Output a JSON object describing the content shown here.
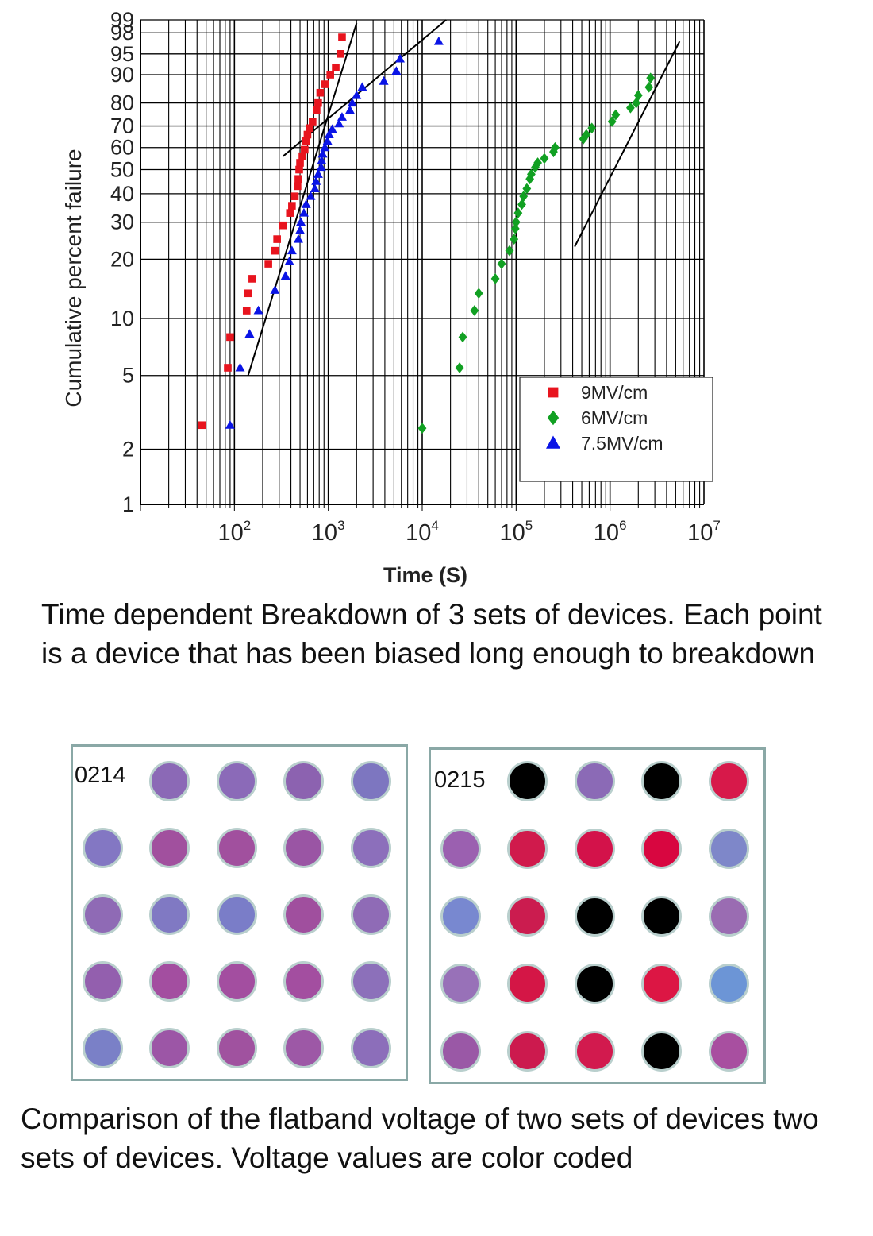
{
  "chart_data": {
    "type": "scatter",
    "xlabel": "Time (S)",
    "ylabel": "Cumulative percent failure",
    "x_scale": "log",
    "y_scale": "weibull",
    "xlim": [
      10,
      10000000
    ],
    "ylim": [
      1,
      99
    ],
    "x_ticks": [
      100,
      1000,
      10000,
      100000,
      1000000,
      10000000
    ],
    "x_tick_labels": [
      "10^2",
      "10^3",
      "10^4",
      "10^5",
      "10^6",
      "10^7"
    ],
    "y_ticks": [
      1,
      2,
      5,
      10,
      20,
      30,
      40,
      50,
      60,
      70,
      80,
      90,
      95,
      98,
      99
    ],
    "grid": true,
    "legend_position": "bottom-right",
    "series": [
      {
        "name": "9MV/cm",
        "color": "#e8141e",
        "marker": "square",
        "points": [
          [
            45,
            2.7
          ],
          [
            85,
            5.5
          ],
          [
            90,
            8
          ],
          [
            135,
            11
          ],
          [
            140,
            13.5
          ],
          [
            155,
            16
          ],
          [
            230,
            19
          ],
          [
            270,
            22
          ],
          [
            285,
            25
          ],
          [
            330,
            29
          ],
          [
            390,
            33
          ],
          [
            410,
            35.5
          ],
          [
            440,
            39
          ],
          [
            470,
            43
          ],
          [
            480,
            46
          ],
          [
            490,
            50
          ],
          [
            500,
            53
          ],
          [
            530,
            56
          ],
          [
            560,
            59
          ],
          [
            580,
            63
          ],
          [
            600,
            66
          ],
          [
            630,
            69
          ],
          [
            680,
            72
          ],
          [
            750,
            77
          ],
          [
            780,
            80
          ],
          [
            820,
            84
          ],
          [
            920,
            87
          ],
          [
            1050,
            90
          ],
          [
            1200,
            92
          ],
          [
            1350,
            95
          ],
          [
            1400,
            97.5
          ]
        ],
        "fit": [
          [
            140,
            5
          ],
          [
            2000,
            98.8
          ]
        ]
      },
      {
        "name": "6MV/cm",
        "color": "#11a022",
        "marker": "diamond",
        "points": [
          [
            10000,
            2.6
          ],
          [
            25000,
            5.5
          ],
          [
            27000,
            8
          ],
          [
            36000,
            11
          ],
          [
            40000,
            13.5
          ],
          [
            60000,
            16
          ],
          [
            70000,
            19
          ],
          [
            85000,
            22
          ],
          [
            95000,
            25
          ],
          [
            98000,
            28
          ],
          [
            100000,
            30
          ],
          [
            105000,
            33
          ],
          [
            115000,
            36
          ],
          [
            120000,
            39
          ],
          [
            130000,
            42
          ],
          [
            140000,
            46
          ],
          [
            145000,
            48
          ],
          [
            160000,
            51
          ],
          [
            170000,
            53
          ],
          [
            200000,
            55
          ],
          [
            250000,
            58
          ],
          [
            260000,
            60
          ],
          [
            520000,
            64
          ],
          [
            560000,
            66
          ],
          [
            640000,
            69
          ],
          [
            1050000,
            72
          ],
          [
            1150000,
            75
          ],
          [
            1650000,
            78
          ],
          [
            1900000,
            80
          ],
          [
            2000000,
            83
          ],
          [
            2600000,
            86
          ],
          [
            2700000,
            89
          ]
        ],
        "fit": [
          [
            420000,
            23
          ],
          [
            5500000,
            97
          ]
        ]
      },
      {
        "name": "7.5MV/cm",
        "color": "#0a14e6",
        "marker": "triangle",
        "points": [
          [
            90,
            2.7
          ],
          [
            115,
            5.5
          ],
          [
            145,
            8.3
          ],
          [
            180,
            11
          ],
          [
            270,
            14
          ],
          [
            350,
            16.5
          ],
          [
            385,
            19.5
          ],
          [
            410,
            22
          ],
          [
            480,
            25
          ],
          [
            500,
            27.5
          ],
          [
            510,
            30
          ],
          [
            550,
            33
          ],
          [
            580,
            36
          ],
          [
            650,
            39
          ],
          [
            720,
            42
          ],
          [
            740,
            45
          ],
          [
            780,
            48
          ],
          [
            840,
            51
          ],
          [
            850,
            54
          ],
          [
            870,
            57
          ],
          [
            920,
            60
          ],
          [
            980,
            63
          ],
          [
            1020,
            66
          ],
          [
            1100,
            68.5
          ],
          [
            1300,
            71
          ],
          [
            1400,
            74
          ],
          [
            1700,
            77
          ],
          [
            1800,
            80
          ],
          [
            2000,
            83
          ],
          [
            2300,
            86
          ],
          [
            3900,
            88
          ],
          [
            5300,
            91
          ],
          [
            5800,
            94
          ],
          [
            15000,
            97
          ]
        ],
        "fit": [
          [
            330,
            56
          ],
          [
            18000,
            99
          ]
        ]
      }
    ],
    "fit_line_color": "#000000"
  },
  "captions": {
    "chart": "Time dependent Breakdown of 3 sets of devices. Each point is a device that has been biased long enough to breakdown",
    "wafers": "Comparison of the flatband voltage of two sets of devices two sets of devices. Voltage values are color coded"
  },
  "wafer_maps": [
    {
      "label": "0214",
      "rows": [
        [
          null,
          "#8b69b6",
          "#8b6ab8",
          "#8c62b0",
          "#7d76c0"
        ],
        [
          "#8377c3",
          "#a1509e",
          "#a1509e",
          "#9a55a4",
          "#8c6fbb"
        ],
        [
          "#8f6ab5",
          "#8079c3",
          "#7a7dc8",
          "#a04f9e",
          "#8f6bb6"
        ],
        [
          "#935fae",
          "#a34ea0",
          "#a34ea0",
          "#a34ea0",
          "#8c70ba"
        ],
        [
          "#7a80c7",
          "#9c56a6",
          "#a0529f",
          "#9d58a6",
          "#8c6eba"
        ]
      ]
    },
    {
      "label": "0215",
      "rows": [
        [
          null,
          "#000000",
          "#8b6ab6",
          "#000000",
          "#d7194a"
        ],
        [
          "#9b60b0",
          "#d01a4c",
          "#d3124a",
          "#d80640",
          "#7e87c9"
        ],
        [
          "#7888d0",
          "#cb1c4f",
          "#000000",
          "#000000",
          "#9a6cb2"
        ],
        [
          "#9871b8",
          "#d41646",
          "#000000",
          "#dc1644",
          "#6c95d6"
        ],
        [
          "#9a58a6",
          "#cc1a4e",
          "#d21a4e",
          "#000000",
          "#a84fa0"
        ]
      ]
    }
  ]
}
